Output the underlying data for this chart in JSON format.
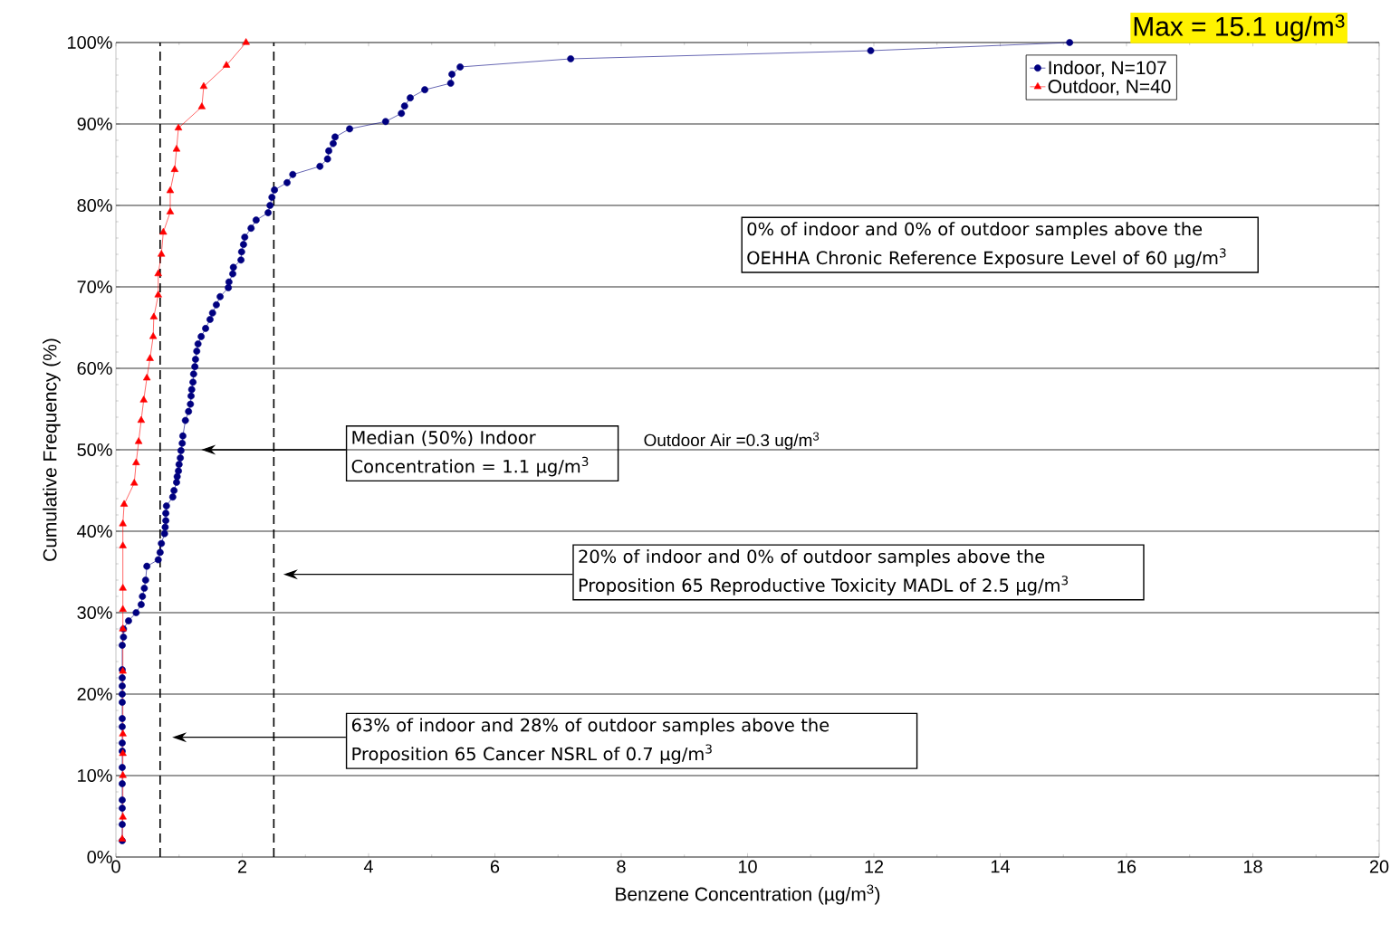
{
  "chart_data": {
    "type": "line",
    "xlabel": "Benzene Concentration (µg/m$^{3}$)",
    "ylabel": "Cumulative Frequency (%)",
    "xlim": [
      0,
      20
    ],
    "ylim": [
      0,
      100
    ],
    "xticks": [
      0,
      2,
      4,
      6,
      8,
      10,
      12,
      14,
      16,
      18,
      20
    ],
    "yticks": [
      {
        "value": 0,
        "label": "0%"
      },
      {
        "value": 10,
        "label": "10%"
      },
      {
        "value": 20,
        "label": "20%"
      },
      {
        "value": 30,
        "label": "30%"
      },
      {
        "value": 40,
        "label": "40%"
      },
      {
        "value": 50,
        "label": "50%"
      },
      {
        "value": 60,
        "label": "60%"
      },
      {
        "value": 70,
        "label": "70%"
      },
      {
        "value": 80,
        "label": "80%"
      },
      {
        "value": 90,
        "label": "90%"
      },
      {
        "value": 100,
        "label": "100%"
      }
    ],
    "grid": "y",
    "legend": "top right",
    "series": [
      {
        "name": "Indoor, N=107",
        "color": "#000080",
        "marker": "circle",
        "x": [
          0.1,
          0.1,
          0.1,
          0.1,
          0.1,
          0.1,
          0.1,
          0.1,
          0.1,
          0.1,
          0.1,
          0.1,
          0.1,
          0.1,
          0.1,
          0.1,
          0.12,
          0.12,
          0.2,
          0.32,
          0.4,
          0.42,
          0.45,
          0.47,
          0.49,
          0.67,
          0.7,
          0.72,
          0.77,
          0.78,
          0.79,
          0.79,
          0.8,
          0.9,
          0.92,
          0.96,
          0.97,
          0.99,
          1.0,
          1.02,
          1.03,
          1.05,
          1.06,
          1.1,
          1.15,
          1.18,
          1.19,
          1.2,
          1.22,
          1.23,
          1.25,
          1.26,
          1.28,
          1.3,
          1.35,
          1.42,
          1.49,
          1.53,
          1.59,
          1.65,
          1.78,
          1.79,
          1.85,
          1.86,
          1.98,
          1.99,
          2.02,
          2.04,
          2.14,
          2.22,
          2.41,
          2.44,
          2.47,
          2.51,
          2.71,
          2.8,
          3.23,
          3.35,
          3.37,
          3.44,
          3.47,
          3.7,
          4.27,
          4.52,
          4.57,
          4.66,
          4.89,
          5.3,
          5.32,
          5.45,
          7.2,
          11.95,
          15.1
        ],
        "values": [
          2,
          4,
          6,
          7,
          9,
          11,
          13,
          14,
          16,
          17,
          19,
          20,
          21,
          22,
          23,
          26,
          27,
          28,
          29,
          30,
          31,
          32,
          33,
          34,
          35.7,
          36.5,
          37.4,
          38.5,
          39.7,
          40.5,
          41.3,
          42.2,
          43.1,
          44.2,
          45,
          46,
          46.7,
          47.4,
          48.2,
          49,
          49.9,
          50.8,
          51.7,
          53.6,
          54.7,
          55.6,
          56.6,
          57.4,
          58.3,
          59.3,
          60.2,
          61.1,
          62.1,
          63,
          63.9,
          64.9,
          66,
          66.8,
          67.8,
          68.8,
          69.9,
          70.6,
          71.6,
          72.4,
          73.3,
          74.3,
          75.2,
          76.1,
          77.2,
          78.2,
          79.1,
          80,
          81,
          81.9,
          82.8,
          83.8,
          84.8,
          85.7,
          86.7,
          87.6,
          88.4,
          89.4,
          90.3,
          91.3,
          92.2,
          93.2,
          94.2,
          95,
          96.1,
          97,
          98,
          99,
          100
        ]
      },
      {
        "name": "Outdoor, N=40",
        "color": "#ff0000",
        "marker": "triangle",
        "x": [
          0.1,
          0.11,
          0.11,
          0.11,
          0.11,
          0.11,
          0.11,
          0.11,
          0.11,
          0.11,
          0.11,
          0.13,
          0.29,
          0.32,
          0.36,
          0.4,
          0.44,
          0.49,
          0.54,
          0.59,
          0.6,
          0.67,
          0.67,
          0.72,
          0.75,
          0.86,
          0.86,
          0.93,
          0.96,
          0.99,
          1.36,
          1.39,
          1.75,
          2.06
        ],
        "values": [
          2.2,
          4.9,
          10,
          12.7,
          15.1,
          22.8,
          28,
          30.4,
          33,
          38.2,
          40.9,
          43.3,
          45.9,
          48.4,
          51,
          53.6,
          56.1,
          58.8,
          61.2,
          63.9,
          66.3,
          69,
          71.6,
          74,
          76.7,
          79.2,
          81.8,
          84.4,
          86.9,
          89.5,
          92.1,
          94.6,
          97.2,
          100
        ]
      }
    ],
    "ref_lines": [
      {
        "axis": "x",
        "value": 0.7,
        "color": "#000000",
        "line_style": "dashed"
      },
      {
        "axis": "x",
        "value": 2.5,
        "color": "#000000",
        "line_style": "dashed"
      }
    ],
    "annotations": [
      "Max = 15.1 ug/m$^{3}$",
      "0% of indoor and 0% of outdoor samples above the OEHHA Chronic Reference Exposure Level of 60 µg/m$^{3}$",
      "Outdoor Air =0.3 ug/m$^{3}$",
      "Median (50%) Indoor Concentration = 1.1 µg/m$^{3}$",
      "20% of indoor and 0% of outdoor samples above the Proposition 65 Reproductive Toxicity MADL of 2.5 µg/m$^{3}$",
      "63% of indoor and 28% of outdoor samples above the Proposition 65 Cancer NSRL of 0.7 µg/m$^{3}$"
    ]
  }
}
